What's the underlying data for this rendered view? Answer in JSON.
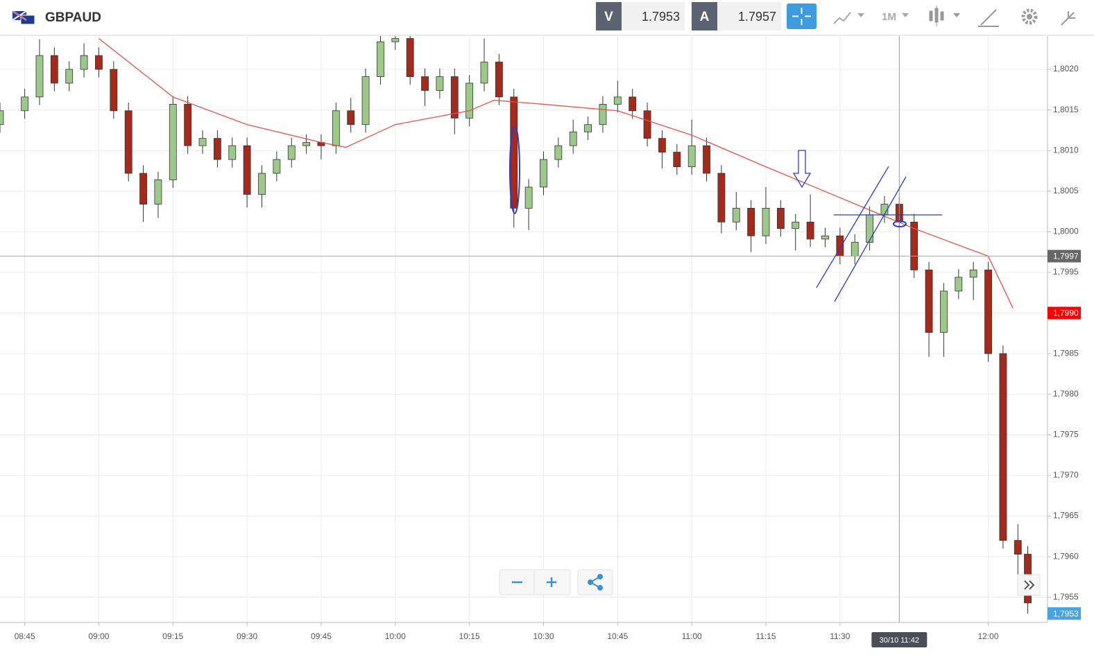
{
  "header": {
    "symbol": "GBPAUD",
    "sell_label": "V",
    "sell_price": "1.7953",
    "buy_label": "A",
    "buy_price": "1.7957",
    "timeframe": "1M"
  },
  "chart_data": {
    "type": "candlestick",
    "x": [
      "08:40",
      "08:45",
      "08:48",
      "08:51",
      "08:54",
      "08:57",
      "09:00",
      "09:03",
      "09:06",
      "09:09",
      "09:12",
      "09:15",
      "09:18",
      "09:21",
      "09:24",
      "09:27",
      "09:30",
      "09:33",
      "09:36",
      "09:39",
      "09:42",
      "09:45",
      "09:48",
      "09:51",
      "09:54",
      "09:57",
      "10:00",
      "10:03",
      "10:06",
      "10:09",
      "10:12",
      "10:15",
      "10:18",
      "10:21",
      "10:24",
      "10:27",
      "10:30",
      "10:33",
      "10:36",
      "10:39",
      "10:42",
      "10:45",
      "10:48",
      "10:51",
      "10:54",
      "10:57",
      "11:00",
      "11:03",
      "11:06",
      "11:09",
      "11:12",
      "11:15",
      "11:18",
      "11:21",
      "11:24",
      "11:27",
      "11:30",
      "11:33",
      "11:36",
      "11:39",
      "11:42",
      "11:45",
      "11:48",
      "11:51",
      "11:54",
      "11:57",
      "12:00",
      "12:03",
      "12:06",
      "12:08"
    ],
    "open": [
      1.80132,
      1.80149,
      1.80166,
      1.80217,
      1.80183,
      1.802,
      1.80217,
      1.802,
      1.80149,
      1.80072,
      1.80034,
      1.80064,
      1.80157,
      1.80106,
      1.80115,
      1.80089,
      1.80106,
      1.80046,
      1.80072,
      1.80089,
      1.80106,
      1.8011,
      1.80106,
      1.80149,
      1.80132,
      1.80191,
      1.80234,
      1.80238,
      1.80191,
      1.80174,
      1.80191,
      1.8014,
      1.80183,
      1.80209,
      1.80166,
      1.80029,
      1.80055,
      1.80089,
      1.80106,
      1.80123,
      1.80132,
      1.80157,
      1.80166,
      1.80149,
      1.80115,
      1.80098,
      1.8008,
      1.80106,
      1.80072,
      1.80012,
      1.80029,
      1.79995,
      1.80029,
      1.80004,
      1.80012,
      1.79991,
      1.79995,
      1.7997,
      1.79987,
      1.80021,
      1.80034,
      1.80012,
      1.79953,
      1.79876,
      1.79927,
      1.79944,
      1.79953,
      1.7985,
      1.7962,
      1.79603
    ],
    "high": [
      1.80159,
      1.80176,
      1.80237,
      1.80227,
      1.8021,
      1.80232,
      1.80227,
      1.8021,
      1.80159,
      1.80082,
      1.80074,
      1.80167,
      1.80167,
      1.80125,
      1.80125,
      1.80116,
      1.80116,
      1.80082,
      1.80099,
      1.80116,
      1.8012,
      1.8012,
      1.80159,
      1.80165,
      1.80201,
      1.80244,
      1.80244,
      1.80244,
      1.80201,
      1.80201,
      1.80201,
      1.80193,
      1.80238,
      1.80219,
      1.80176,
      1.80065,
      1.80099,
      1.80116,
      1.80138,
      1.80142,
      1.80167,
      1.80186,
      1.80176,
      1.80159,
      1.80125,
      1.80108,
      1.80138,
      1.80116,
      1.80082,
      1.80049,
      1.80039,
      1.80055,
      1.80039,
      1.80022,
      1.80046,
      1.80005,
      1.80005,
      1.79997,
      1.80031,
      1.80044,
      1.80044,
      1.80022,
      1.79963,
      1.79937,
      1.79954,
      1.79963,
      1.79963,
      1.7986,
      1.7964,
      1.79613
    ],
    "low": [
      1.80122,
      1.80139,
      1.80156,
      1.80173,
      1.80173,
      1.8019,
      1.8019,
      1.80139,
      1.80062,
      1.80012,
      1.80017,
      1.80054,
      1.80096,
      1.80096,
      1.80079,
      1.80079,
      1.8003,
      1.8003,
      1.80062,
      1.80079,
      1.80096,
      1.80089,
      1.80096,
      1.80122,
      1.80122,
      1.80181,
      1.80224,
      1.80181,
      1.80155,
      1.80164,
      1.8012,
      1.8013,
      1.80173,
      1.80156,
      1.80005,
      1.80002,
      1.80045,
      1.80079,
      1.80096,
      1.80113,
      1.80122,
      1.80147,
      1.80139,
      1.80105,
      1.80078,
      1.8007,
      1.8007,
      1.80062,
      1.79998,
      1.80002,
      1.79975,
      1.79985,
      1.79994,
      1.79977,
      1.79981,
      1.79981,
      1.7996,
      1.7996,
      1.79977,
      1.80011,
      1.80002,
      1.79943,
      1.79846,
      1.79846,
      1.79917,
      1.79916,
      1.7984,
      1.7961,
      1.79563,
      1.7953
    ],
    "close": [
      1.80149,
      1.80166,
      1.80217,
      1.80183,
      1.802,
      1.80217,
      1.802,
      1.80149,
      1.80072,
      1.80034,
      1.80064,
      1.80157,
      1.80106,
      1.80115,
      1.80089,
      1.80106,
      1.80046,
      1.80072,
      1.80089,
      1.80106,
      1.8011,
      1.80106,
      1.80149,
      1.80132,
      1.80191,
      1.80234,
      1.80238,
      1.80191,
      1.80174,
      1.80191,
      1.8014,
      1.80183,
      1.80209,
      1.80166,
      1.80029,
      1.80055,
      1.80089,
      1.80106,
      1.80123,
      1.80132,
      1.80157,
      1.80166,
      1.80149,
      1.80115,
      1.80098,
      1.8008,
      1.80106,
      1.80072,
      1.80012,
      1.80029,
      1.79995,
      1.80029,
      1.80004,
      1.80012,
      1.79991,
      1.79995,
      1.7997,
      1.79987,
      1.80021,
      1.80034,
      1.80012,
      1.79953,
      1.79876,
      1.79927,
      1.79944,
      1.79953,
      1.7985,
      1.7962,
      1.79603,
      1.79543
    ],
    "up_color": "#9cc98a",
    "down_color": "#a52a1c",
    "moving_average": {
      "color": "#e8504a",
      "x": [
        "09:00",
        "09:15",
        "09:30",
        "09:45",
        "09:50",
        "10:00",
        "10:15",
        "10:20",
        "10:30",
        "10:45",
        "11:00",
        "11:15",
        "11:30",
        "11:45",
        "12:00",
        "12:05"
      ],
      "values": [
        1.80238,
        1.80166,
        1.80132,
        1.8011,
        1.80104,
        1.80132,
        1.80149,
        1.80162,
        1.80157,
        1.80149,
        1.80119,
        1.8008,
        1.80042,
        1.80004,
        1.7997,
        1.79906
      ]
    },
    "xlim": [
      "08:40",
      "12:12"
    ],
    "xticks": [
      "08:45",
      "09:00",
      "09:15",
      "09:30",
      "09:45",
      "10:00",
      "10:15",
      "10:30",
      "10:45",
      "11:00",
      "11:15",
      "11:30",
      "12:00"
    ],
    "ylim": [
      1.79519,
      1.80241
    ],
    "yticks": [
      {
        "value": 1.802,
        "label": "1,8020"
      },
      {
        "value": 1.8015,
        "label": "1,8015"
      },
      {
        "value": 1.801,
        "label": "1,8010"
      },
      {
        "value": 1.8005,
        "label": "1,8005"
      },
      {
        "value": 1.8,
        "label": "1,8000"
      },
      {
        "value": 1.7995,
        "label": "1,7995"
      },
      {
        "value": 1.799,
        "label": "1,7990"
      },
      {
        "value": 1.7985,
        "label": "1,7985"
      },
      {
        "value": 1.798,
        "label": "1,7980"
      },
      {
        "value": 1.7975,
        "label": "1,7975"
      },
      {
        "value": 1.797,
        "label": "1,7970"
      },
      {
        "value": 1.7965,
        "label": "1,7965"
      },
      {
        "value": 1.796,
        "label": "1,7960"
      },
      {
        "value": 1.7955,
        "label": "1,7955"
      }
    ],
    "grid": true,
    "price_markers": [
      {
        "value": 1.7997,
        "label": "1,7997",
        "color": "#666666",
        "line": true
      },
      {
        "value": 1.799,
        "label": "1,7990",
        "color": "#ff0000",
        "line": false
      },
      {
        "value": 1.7953,
        "label": "1,7953",
        "color": "#4aa3df",
        "line": false
      }
    ],
    "crosshair": {
      "x": "11:42",
      "label": "30/10 11:42"
    }
  }
}
